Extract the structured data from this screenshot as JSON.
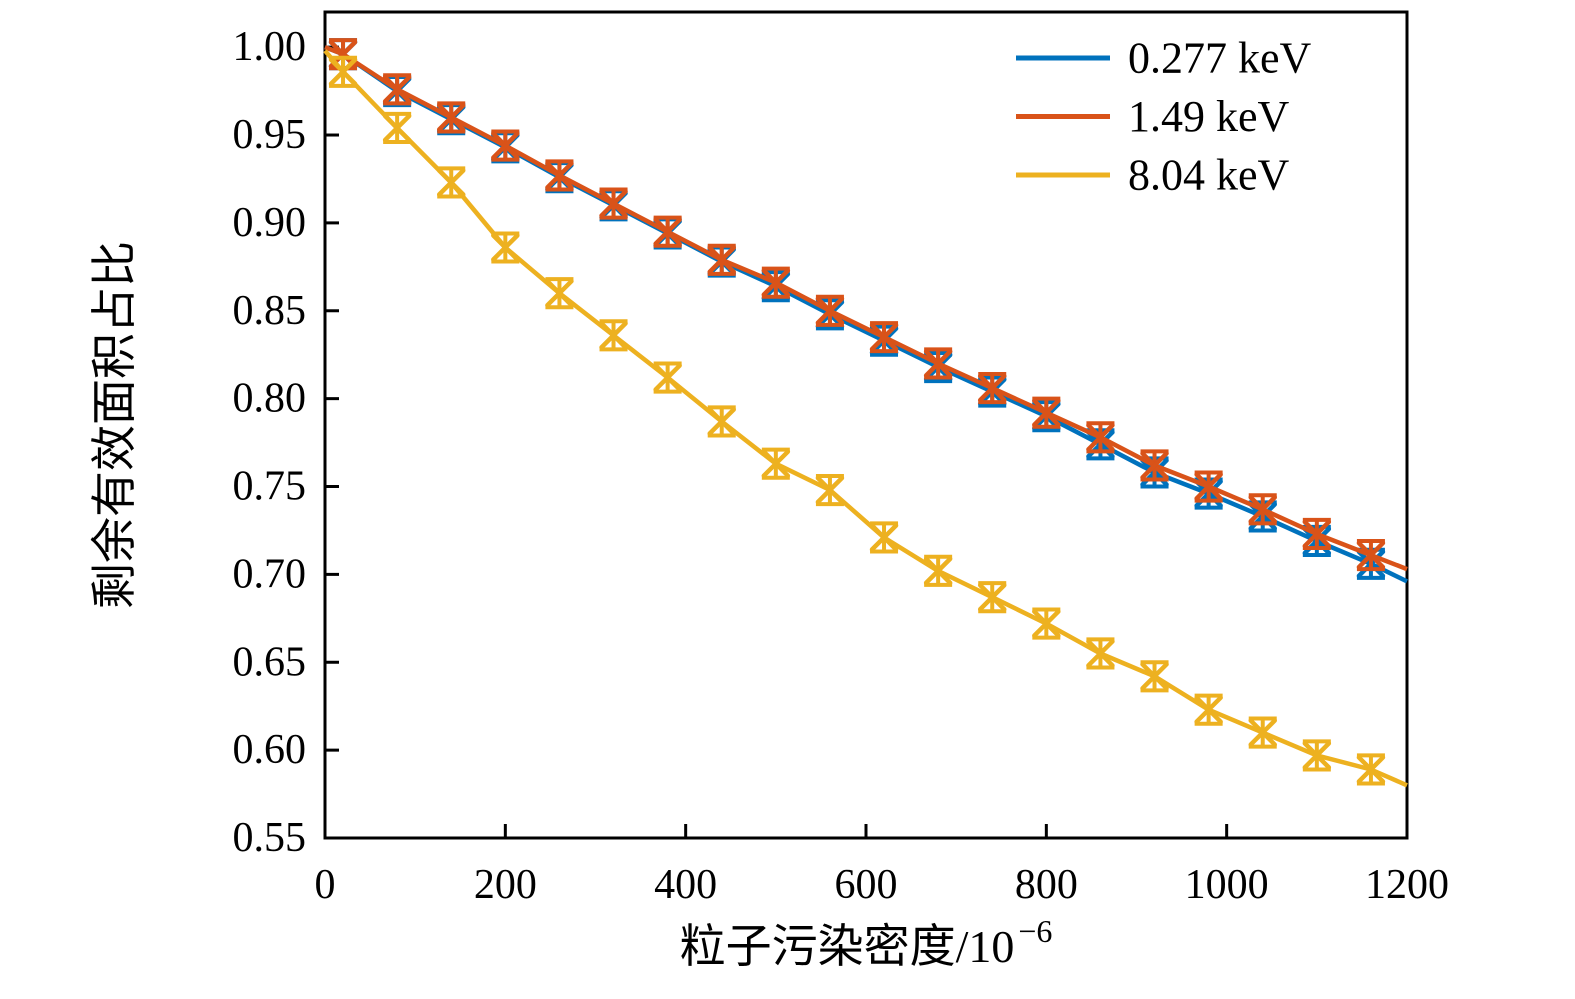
{
  "figure": {
    "background": "#ffffff",
    "axis_color": "#000000"
  },
  "chart_data": {
    "type": "line",
    "title": "",
    "xlabel": {
      "base": "粒子污染密度/10",
      "sup": "−6",
      "full": "粒子污染密度/10⁻⁶"
    },
    "ylabel": "剩余有效面积占比",
    "xlim": [
      0,
      1200
    ],
    "ylim": [
      0.55,
      1.02
    ],
    "xticks": [
      0,
      200,
      400,
      600,
      800,
      1000,
      1200
    ],
    "yticks": [
      1.0,
      0.95,
      0.9,
      0.85,
      0.8,
      0.75,
      0.7,
      0.65,
      0.6,
      0.55
    ],
    "grid": false,
    "legend_position": "top-right-inside",
    "marker_style": "x-cross-with-error-bars",
    "x": [
      0,
      20,
      80,
      140,
      200,
      260,
      320,
      380,
      440,
      500,
      560,
      620,
      680,
      740,
      800,
      860,
      920,
      980,
      1040,
      1100,
      1160,
      1200
    ],
    "marker_index_start": 1,
    "marker_index_end": 20,
    "series": [
      {
        "name": "0.277 keV",
        "color": "#0072BD",
        "yerr": 0.008,
        "y": [
          1.0,
          0.996,
          0.975,
          0.959,
          0.943,
          0.926,
          0.91,
          0.894,
          0.878,
          0.864,
          0.848,
          0.833,
          0.818,
          0.804,
          0.79,
          0.774,
          0.758,
          0.746,
          0.733,
          0.719,
          0.706,
          0.696
        ]
      },
      {
        "name": "1.49 keV",
        "color": "#D95319",
        "yerr": 0.008,
        "y": [
          1.0,
          0.996,
          0.976,
          0.96,
          0.944,
          0.927,
          0.911,
          0.895,
          0.879,
          0.866,
          0.85,
          0.835,
          0.82,
          0.806,
          0.792,
          0.778,
          0.762,
          0.75,
          0.737,
          0.723,
          0.711,
          0.703
        ]
      },
      {
        "name": "8.04 keV",
        "color": "#EDB120",
        "yerr": 0.008,
        "y": [
          0.998,
          0.986,
          0.954,
          0.923,
          0.886,
          0.86,
          0.836,
          0.812,
          0.787,
          0.763,
          0.748,
          0.721,
          0.702,
          0.687,
          0.672,
          0.655,
          0.642,
          0.623,
          0.61,
          0.597,
          0.589,
          0.58
        ]
      }
    ]
  }
}
